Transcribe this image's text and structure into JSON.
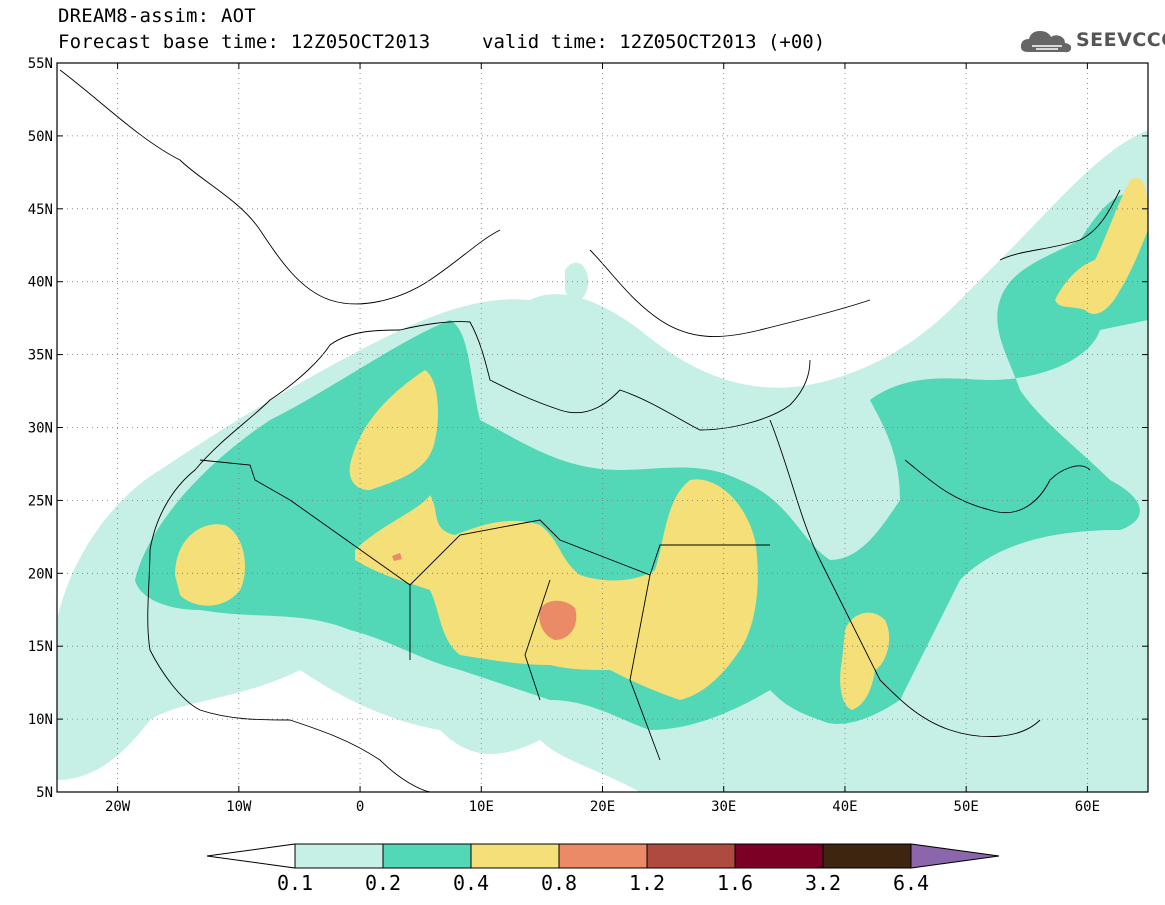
{
  "title": {
    "line1": "DREAM8-assim: AOT",
    "line2": "Forecast base time: 12Z05OCT2013",
    "valid": "valid time: 12Z05OCT2013 (+00)"
  },
  "logo": {
    "text": "SEEVCCC",
    "icon": "cloud-icon"
  },
  "axes": {
    "lat_labels": [
      "55N",
      "50N",
      "45N",
      "40N",
      "35N",
      "30N",
      "25N",
      "20N",
      "15N",
      "10N",
      "5N"
    ],
    "lat_values": [
      55,
      50,
      45,
      40,
      35,
      30,
      25,
      20,
      15,
      10,
      5
    ],
    "lon_labels": [
      "20W",
      "10W",
      "0",
      "10E",
      "20E",
      "30E",
      "40E",
      "50E",
      "60E"
    ],
    "lon_values": [
      -20,
      -10,
      0,
      10,
      20,
      30,
      40,
      50,
      60
    ],
    "lon_range": [
      -25,
      65
    ],
    "lat_range": [
      5,
      55
    ],
    "grid": "dotted"
  },
  "colorbar": {
    "labels": [
      "0.1",
      "0.2",
      "0.4",
      "0.8",
      "1.2",
      "1.6",
      "3.2",
      "6.4"
    ],
    "colors": [
      "#ffffff",
      "#c6f0e6",
      "#52d7b7",
      "#f5df78",
      "#eb8a66",
      "#ae4a3e",
      "#7a0026",
      "#3d2510",
      "#8c66ad"
    ]
  },
  "field_colors": {
    "level_0_1": "#c6f0e6",
    "level_0_2": "#52d7b7",
    "level_0_4": "#f5df78",
    "level_0_8": "#eb8a66"
  }
}
